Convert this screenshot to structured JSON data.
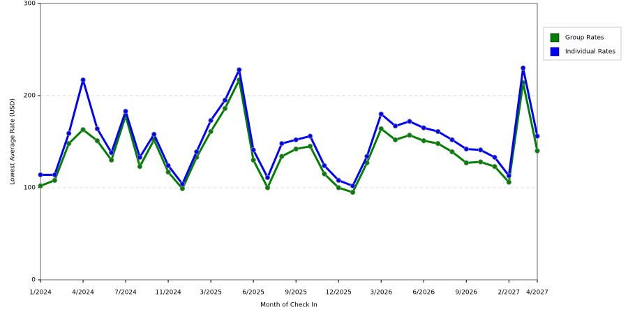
{
  "chart_data": {
    "type": "line",
    "x_label": "Month of Check In",
    "y_label": "Lowest Average Rate (USD)",
    "categories": [
      "1/2024",
      null,
      null,
      "4/2024",
      null,
      null,
      "7/2024",
      null,
      null,
      "11/2024",
      null,
      null,
      "3/2025",
      null,
      null,
      "6/2025",
      null,
      null,
      "9/2025",
      null,
      null,
      "12/2025",
      null,
      null,
      "3/2026",
      null,
      null,
      "6/2026",
      null,
      null,
      "9/2026",
      null,
      null,
      "2/2027",
      null,
      "4/2027"
    ],
    "series": [
      {
        "name": "Group Rates",
        "color": "#008000",
        "values": [
          102,
          108,
          148,
          163,
          151,
          130,
          178,
          123,
          152,
          117,
          99,
          133,
          161,
          186,
          217,
          130,
          100,
          134,
          142,
          145,
          115,
          100,
          95,
          127,
          164,
          152,
          157,
          151,
          148,
          139,
          127,
          128,
          123,
          106,
          214,
          140
        ]
      },
      {
        "name": "Individual Rates",
        "color": "#0000ff",
        "values": [
          114,
          114,
          159,
          217,
          164,
          138,
          183,
          133,
          158,
          124,
          104,
          139,
          173,
          195,
          228,
          141,
          111,
          148,
          152,
          156,
          124,
          108,
          102,
          134,
          180,
          167,
          172,
          165,
          161,
          152,
          142,
          141,
          133,
          113,
          230,
          156
        ]
      }
    ],
    "ylim": [
      0,
      300
    ],
    "yticks": [
      0,
      100,
      200,
      300
    ],
    "grid": true,
    "legend": "right"
  }
}
